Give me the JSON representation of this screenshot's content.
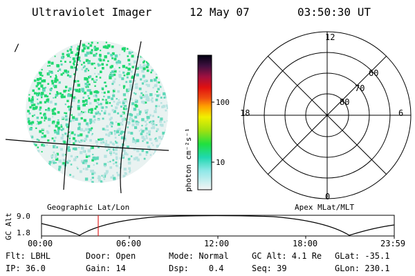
{
  "header": {
    "instrument": "Ultraviolet Imager",
    "date": "12 May 07",
    "time": "03:50:30 UT"
  },
  "image_panel": {
    "corner_mark": "/"
  },
  "colorbar": {
    "unit_label": "photon cm⁻²s⁻¹",
    "tick_labels": [
      "100",
      "10"
    ]
  },
  "polar_plot": {
    "mlt_labels": {
      "top": "12",
      "left": "18",
      "right": "6",
      "bottom": "0"
    },
    "lat_labels": [
      "60",
      "70",
      "80"
    ]
  },
  "timeline": {
    "left_title": "Geographic Lat/Lon",
    "right_title": "Apex MLat/MLT",
    "axis_label": "GC Alt",
    "y_ticks": [
      "9.0",
      "1.8"
    ],
    "x_ticks": [
      "00:00",
      "06:00",
      "12:00",
      "18:00",
      "23:59"
    ],
    "current_time_marker": "03:50",
    "marker_color": "#e02020"
  },
  "info": {
    "row1": [
      "Flt: LBHL",
      "Door: Open",
      "Mode: Normal",
      "GC Alt: 4.1 Re",
      "GLat: -35.1"
    ],
    "row2": [
      "IP: 36.0",
      "Gain: 14",
      "Dsp:    0.4",
      "Seq: 39",
      "GLon: 230.1"
    ]
  },
  "colors": {
    "emission_low": "#b6e3e0",
    "emission_mid": "#5fd8b8",
    "emission_high": "#20d870",
    "colorbar_top": "#000010"
  }
}
